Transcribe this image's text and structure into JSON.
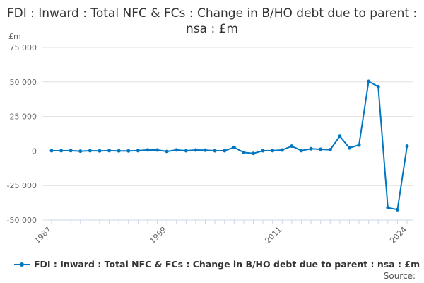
{
  "chart_data": {
    "type": "line",
    "title": "FDI : Inward : Total NFC & FCs : Change in B/HO debt due to parent : nsa : £m",
    "ylabel": "£m",
    "ylim": [
      -50000,
      75000
    ],
    "yticks": [
      -50000,
      -25000,
      0,
      25000,
      50000,
      75000
    ],
    "ytick_labels": [
      "-50 000",
      "-25 000",
      "0",
      "25 000",
      "50 000",
      "75 000"
    ],
    "xtick_labels": [
      "1987",
      "1999",
      "2011",
      "2024"
    ],
    "x": [
      1987,
      1988,
      1989,
      1990,
      1991,
      1992,
      1993,
      1994,
      1995,
      1996,
      1997,
      1998,
      1999,
      2000,
      2001,
      2002,
      2003,
      2004,
      2005,
      2006,
      2007,
      2008,
      2009,
      2010,
      2011,
      2012,
      2013,
      2014,
      2015,
      2016,
      2017,
      2018,
      2019,
      2020,
      2021,
      2022,
      2023,
      2024
    ],
    "series": [
      {
        "name": "FDI : Inward : Total NFC & FCs : Change in B/HO debt due to parent : nsa : £m",
        "color": "#0077c0",
        "values": [
          200,
          200,
          300,
          -100,
          200,
          100,
          300,
          100,
          100,
          300,
          800,
          700,
          -300,
          800,
          200,
          700,
          600,
          200,
          200,
          2600,
          -1000,
          -1700,
          200,
          300,
          700,
          3500,
          300,
          1600,
          1200,
          900,
          10600,
          2200,
          4300,
          50400,
          46600,
          -41000,
          -42500,
          3500
        ]
      }
    ],
    "grid": true,
    "legend": "bottom",
    "source": "Source:"
  }
}
